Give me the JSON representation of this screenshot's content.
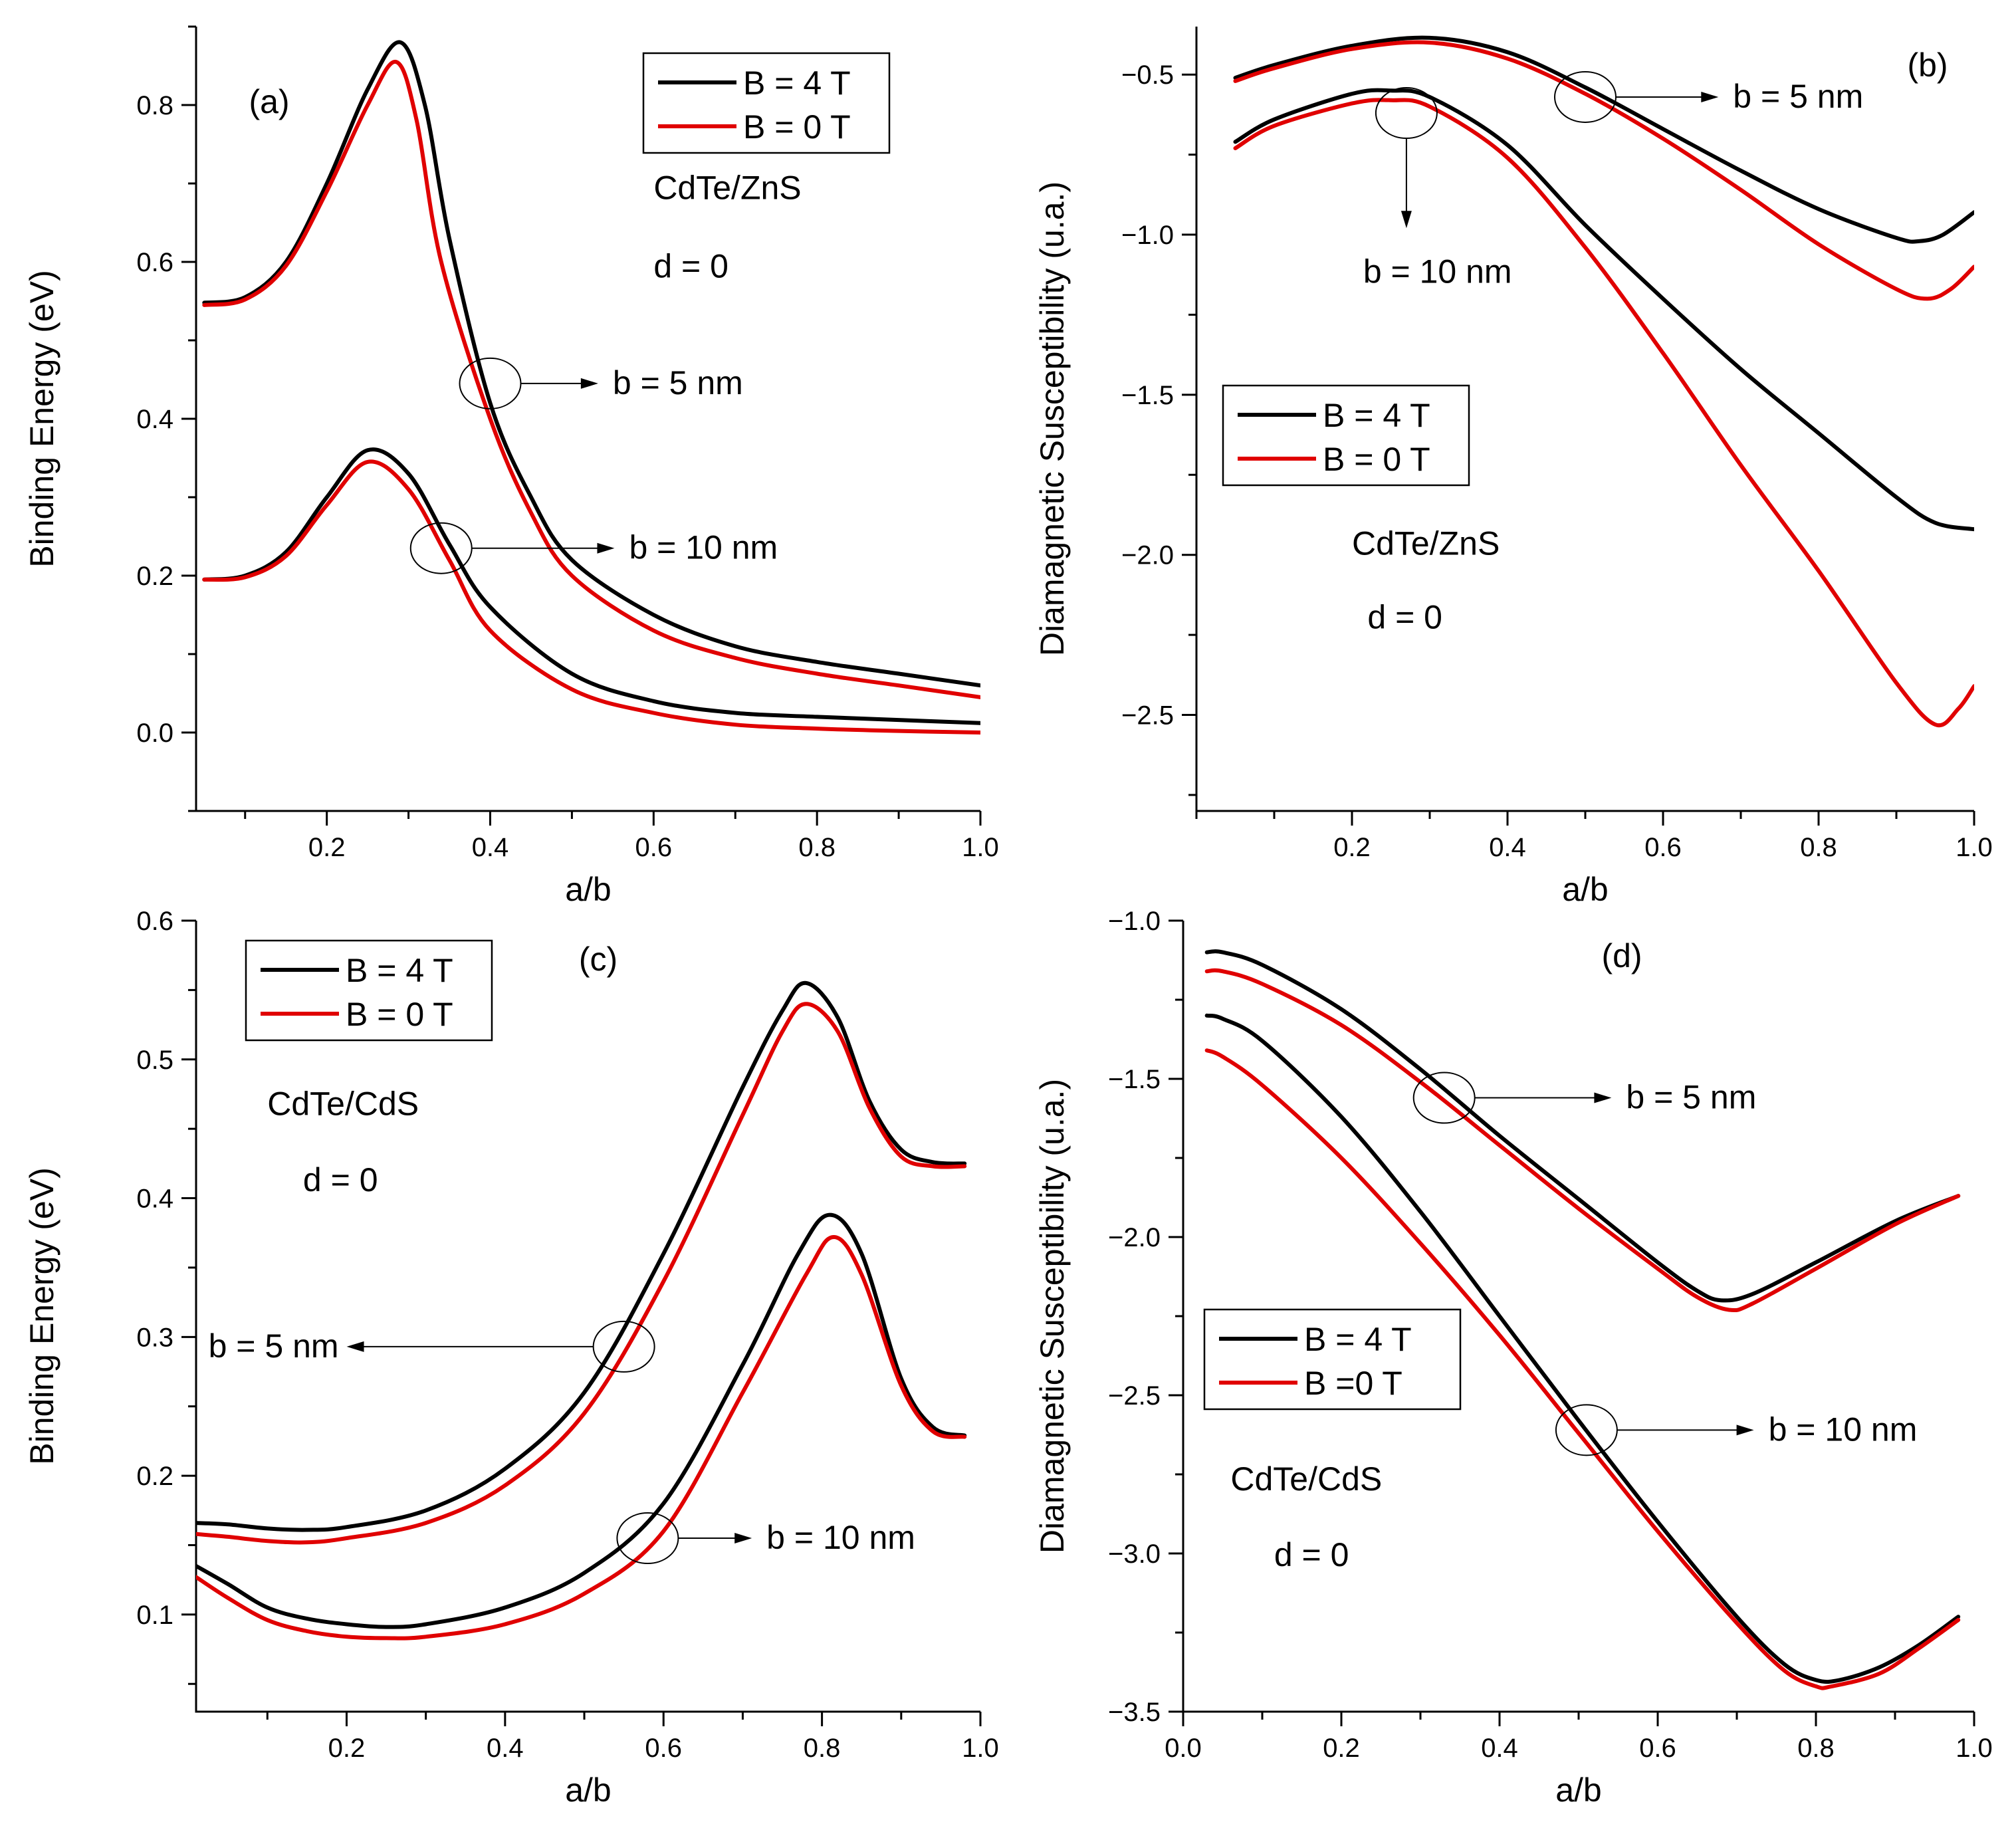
{
  "colors": {
    "b4": "#000000",
    "b0": "#e00000"
  },
  "chart_data": [
    {
      "id": "a",
      "type": "line",
      "panel_label": "(a)",
      "xlabel": "a/b",
      "ylabel": "Binding Energy (eV)",
      "xlim": [
        0.04,
        1.0
      ],
      "ylim": [
        -0.1,
        0.9
      ],
      "xticks": [
        0.2,
        0.4,
        0.6,
        0.8,
        1.0
      ],
      "xtick_labels": [
        "0.2",
        "0.4",
        "0.6",
        "0.8",
        "1.0"
      ],
      "yticks": [
        0.0,
        0.2,
        0.4,
        0.6,
        0.8
      ],
      "ytick_labels": [
        "0.0",
        "0.2",
        "0.4",
        "0.6",
        "0.8"
      ],
      "legend": {
        "position": "top-right",
        "entries": [
          {
            "label": "B = 4 T",
            "color_key": "b4"
          },
          {
            "label": "B = 0 T",
            "color_key": "b0"
          }
        ]
      },
      "annotations": [
        {
          "text": "CdTe/ZnS",
          "x": 0.6,
          "y": 0.68
        },
        {
          "text": "d = 0",
          "x": 0.6,
          "y": 0.58
        }
      ],
      "markers": [
        {
          "text": "b = 5 nm",
          "ex": 0.4,
          "ey": 0.445,
          "tx": 0.55,
          "ty": 0.445
        },
        {
          "text": "b = 10 nm",
          "ex": 0.34,
          "ey": 0.235,
          "tx": 0.57,
          "ty": 0.235
        }
      ],
      "series": [
        {
          "name": "B = 4 T, b = 5 nm",
          "color_key": "b4",
          "x": [
            0.05,
            0.1,
            0.15,
            0.2,
            0.25,
            0.29,
            0.32,
            0.35,
            0.4,
            0.45,
            0.5,
            0.6,
            0.7,
            0.8,
            0.9,
            1.0
          ],
          "y": [
            0.548,
            0.555,
            0.6,
            0.7,
            0.82,
            0.88,
            0.8,
            0.63,
            0.42,
            0.3,
            0.22,
            0.15,
            0.11,
            0.09,
            0.075,
            0.06
          ]
        },
        {
          "name": "B = 0 T, b = 5 nm",
          "color_key": "b0",
          "x": [
            0.05,
            0.1,
            0.15,
            0.2,
            0.25,
            0.285,
            0.31,
            0.34,
            0.4,
            0.45,
            0.5,
            0.6,
            0.7,
            0.8,
            0.9,
            1.0
          ],
          "y": [
            0.545,
            0.552,
            0.595,
            0.69,
            0.8,
            0.855,
            0.78,
            0.6,
            0.4,
            0.28,
            0.2,
            0.13,
            0.095,
            0.075,
            0.06,
            0.045
          ]
        },
        {
          "name": "B = 4 T, b = 10 nm",
          "color_key": "b4",
          "x": [
            0.05,
            0.1,
            0.15,
            0.2,
            0.25,
            0.3,
            0.35,
            0.4,
            0.5,
            0.6,
            0.7,
            0.8,
            0.9,
            1.0
          ],
          "y": [
            0.195,
            0.2,
            0.23,
            0.3,
            0.36,
            0.33,
            0.24,
            0.16,
            0.075,
            0.04,
            0.025,
            0.02,
            0.016,
            0.012
          ]
        },
        {
          "name": "B = 0 T, b = 10 nm",
          "color_key": "b0",
          "x": [
            0.05,
            0.1,
            0.15,
            0.2,
            0.25,
            0.3,
            0.35,
            0.4,
            0.5,
            0.6,
            0.7,
            0.8,
            0.9,
            1.0
          ],
          "y": [
            0.195,
            0.198,
            0.225,
            0.29,
            0.345,
            0.31,
            0.22,
            0.13,
            0.055,
            0.025,
            0.01,
            0.005,
            0.002,
            0.0
          ]
        }
      ]
    },
    {
      "id": "b",
      "type": "line",
      "panel_label": "(b)",
      "xlabel": "a/b",
      "ylabel": "Diamagnetic Susceptibility (u.a.)",
      "xlim": [
        0.0,
        1.0
      ],
      "ylim": [
        -2.8,
        -0.35
      ],
      "xticks": [
        0.2,
        0.4,
        0.6,
        0.8,
        1.0
      ],
      "xtick_labels": [
        "0.2",
        "0.4",
        "0.6",
        "0.8",
        "1.0"
      ],
      "yticks": [
        -2.5,
        -2.0,
        -1.5,
        -1.0,
        -0.5
      ],
      "ytick_labels": [
        "−2.5",
        "−2.0",
        "−1.5",
        "−1.0",
        "−0.5"
      ],
      "legend": {
        "position": "center-left",
        "entries": [
          {
            "label": "B = 4 T",
            "color_key": "b4"
          },
          {
            "label": "B = 0 T",
            "color_key": "b0"
          }
        ]
      },
      "annotations": [
        {
          "text": "CdTe/ZnS",
          "x": 0.2,
          "y": -2.0
        },
        {
          "text": "d = 0",
          "x": 0.22,
          "y": -2.23
        }
      ],
      "markers": [
        {
          "text": "b = 5 nm",
          "ex": 0.5,
          "ey": -0.57,
          "tx": 0.69,
          "ty": -0.57
        },
        {
          "text": "b = 10 nm",
          "ex": 0.27,
          "ey": -0.62,
          "tx": 0.31,
          "ty": -1.15,
          "arrow_dir": "down"
        }
      ],
      "series": [
        {
          "name": "B = 4 T, b = 5 nm",
          "color_key": "b4",
          "x": [
            0.05,
            0.1,
            0.2,
            0.3,
            0.4,
            0.5,
            0.6,
            0.7,
            0.8,
            0.9,
            0.93,
            0.96,
            1.0
          ],
          "y": [
            -0.51,
            -0.47,
            -0.41,
            -0.385,
            -0.43,
            -0.54,
            -0.67,
            -0.8,
            -0.92,
            -1.01,
            -1.02,
            -1.0,
            -0.93
          ]
        },
        {
          "name": "B = 0 T, b = 5 nm",
          "color_key": "b0",
          "x": [
            0.05,
            0.1,
            0.2,
            0.3,
            0.4,
            0.5,
            0.6,
            0.7,
            0.8,
            0.9,
            0.94,
            0.97,
            1.0
          ],
          "y": [
            -0.52,
            -0.48,
            -0.42,
            -0.4,
            -0.45,
            -0.56,
            -0.7,
            -0.86,
            -1.03,
            -1.17,
            -1.2,
            -1.17,
            -1.1
          ]
        },
        {
          "name": "B = 4 T, b = 10 nm",
          "color_key": "b4",
          "x": [
            0.05,
            0.1,
            0.2,
            0.25,
            0.3,
            0.4,
            0.5,
            0.6,
            0.7,
            0.8,
            0.9,
            0.95,
            1.0
          ],
          "y": [
            -0.71,
            -0.64,
            -0.56,
            -0.55,
            -0.57,
            -0.72,
            -0.97,
            -1.2,
            -1.42,
            -1.62,
            -1.82,
            -1.9,
            -1.92
          ]
        },
        {
          "name": "B = 0 T, b = 10 nm",
          "color_key": "b0",
          "x": [
            0.05,
            0.1,
            0.2,
            0.25,
            0.3,
            0.4,
            0.5,
            0.6,
            0.7,
            0.8,
            0.9,
            0.95,
            0.98,
            1.0
          ],
          "y": [
            -0.73,
            -0.66,
            -0.59,
            -0.58,
            -0.6,
            -0.76,
            -1.04,
            -1.37,
            -1.72,
            -2.05,
            -2.4,
            -2.53,
            -2.48,
            -2.41
          ]
        }
      ]
    },
    {
      "id": "c",
      "type": "line",
      "panel_label": "(c)",
      "xlabel": "a/b",
      "ylabel": "Binding Energy (eV)",
      "xlim": [
        0.01,
        1.0
      ],
      "ylim": [
        0.03,
        0.6
      ],
      "xticks": [
        0.2,
        0.4,
        0.6,
        0.8,
        1.0
      ],
      "xtick_labels": [
        "0.2",
        "0.4",
        "0.6",
        "0.8",
        "1.0"
      ],
      "yticks": [
        0.1,
        0.2,
        0.3,
        0.4,
        0.5,
        0.6
      ],
      "ytick_labels": [
        "0.1",
        "0.2",
        "0.3",
        "0.4",
        "0.5",
        "0.6"
      ],
      "legend": {
        "position": "top-left",
        "entries": [
          {
            "label": "B = 4 T",
            "color_key": "b4"
          },
          {
            "label": "B = 0 T",
            "color_key": "b0"
          }
        ]
      },
      "annotations": [
        {
          "text": "CdTe/CdS",
          "x": 0.1,
          "y": 0.46
        },
        {
          "text": "d = 0",
          "x": 0.145,
          "y": 0.405
        }
      ],
      "markers": [
        {
          "text": "b = 5 nm",
          "ex": 0.55,
          "ey": 0.293,
          "tx": 0.19,
          "ty": 0.293,
          "arrow_dir": "left"
        },
        {
          "text": "b = 10 nm",
          "ex": 0.58,
          "ey": 0.155,
          "tx": 0.73,
          "ty": 0.155
        }
      ],
      "series": [
        {
          "name": "B = 4 T, b = 5 nm",
          "color_key": "b4",
          "x": [
            0.01,
            0.05,
            0.1,
            0.15,
            0.2,
            0.3,
            0.4,
            0.5,
            0.6,
            0.7,
            0.75,
            0.78,
            0.82,
            0.86,
            0.9,
            0.94,
            0.98
          ],
          "y": [
            0.166,
            0.165,
            0.162,
            0.161,
            0.163,
            0.175,
            0.205,
            0.26,
            0.36,
            0.48,
            0.535,
            0.555,
            0.53,
            0.47,
            0.435,
            0.426,
            0.425
          ]
        },
        {
          "name": "B = 0 T, b = 5 nm",
          "color_key": "b0",
          "x": [
            0.01,
            0.05,
            0.1,
            0.15,
            0.2,
            0.3,
            0.4,
            0.5,
            0.6,
            0.7,
            0.75,
            0.78,
            0.82,
            0.86,
            0.9,
            0.94,
            0.98
          ],
          "y": [
            0.158,
            0.156,
            0.153,
            0.152,
            0.155,
            0.166,
            0.193,
            0.245,
            0.34,
            0.46,
            0.52,
            0.54,
            0.52,
            0.465,
            0.43,
            0.423,
            0.423
          ]
        },
        {
          "name": "B = 4 T, b = 10 nm",
          "color_key": "b4",
          "x": [
            0.01,
            0.05,
            0.1,
            0.15,
            0.2,
            0.25,
            0.3,
            0.4,
            0.5,
            0.6,
            0.7,
            0.77,
            0.81,
            0.85,
            0.9,
            0.94,
            0.98
          ],
          "y": [
            0.135,
            0.122,
            0.105,
            0.097,
            0.093,
            0.091,
            0.093,
            0.105,
            0.13,
            0.18,
            0.28,
            0.36,
            0.388,
            0.36,
            0.27,
            0.235,
            0.229
          ]
        },
        {
          "name": "B = 0 T, b = 10 nm",
          "color_key": "b0",
          "x": [
            0.01,
            0.05,
            0.1,
            0.15,
            0.2,
            0.25,
            0.3,
            0.4,
            0.5,
            0.6,
            0.7,
            0.78,
            0.815,
            0.85,
            0.9,
            0.94,
            0.98
          ],
          "y": [
            0.127,
            0.112,
            0.096,
            0.088,
            0.084,
            0.083,
            0.084,
            0.093,
            0.115,
            0.16,
            0.26,
            0.345,
            0.372,
            0.345,
            0.265,
            0.232,
            0.228
          ]
        }
      ]
    },
    {
      "id": "d",
      "type": "line",
      "panel_label": "(d)",
      "xlabel": "a/b",
      "ylabel": "Diamagnetic Susceptibility (u.a.)",
      "xlim": [
        0.0,
        1.0
      ],
      "ylim": [
        -3.5,
        -1.0
      ],
      "xticks": [
        0.0,
        0.2,
        0.4,
        0.6,
        0.8,
        1.0
      ],
      "xtick_labels": [
        "0.0",
        "0.2",
        "0.4",
        "0.6",
        "0.8",
        "1.0"
      ],
      "yticks": [
        -3.5,
        -3.0,
        -2.5,
        -2.0,
        -1.5,
        -1.0
      ],
      "ytick_labels": [
        "−3.5",
        "−3.0",
        "−2.5",
        "−2.0",
        "−1.5",
        "−1.0"
      ],
      "legend": {
        "position": "center-left",
        "entries": [
          {
            "label": "B = 4 T",
            "color_key": "b4"
          },
          {
            "label": "B  =0 T",
            "color_key": "b0"
          }
        ]
      },
      "annotations": [
        {
          "text": "CdTe/CdS",
          "x": 0.06,
          "y": -2.8
        },
        {
          "text": "d = 0",
          "x": 0.115,
          "y": -3.04
        }
      ],
      "markers": [
        {
          "text": "b = 5 nm",
          "ex": 0.33,
          "ey": -1.56,
          "tx": 0.56,
          "ty": -1.56
        },
        {
          "text": "b = 10 nm",
          "ex": 0.51,
          "ey": -2.61,
          "tx": 0.74,
          "ty": -2.61
        }
      ],
      "series": [
        {
          "name": "B = 4 T, b = 5 nm",
          "color_key": "b4",
          "x": [
            0.03,
            0.05,
            0.1,
            0.2,
            0.3,
            0.4,
            0.5,
            0.6,
            0.65,
            0.68,
            0.72,
            0.8,
            0.9,
            0.98
          ],
          "y": [
            -1.1,
            -1.1,
            -1.14,
            -1.28,
            -1.47,
            -1.68,
            -1.88,
            -2.08,
            -2.17,
            -2.2,
            -2.18,
            -2.08,
            -1.95,
            -1.87
          ]
        },
        {
          "name": "B = 0 T, b = 5 nm",
          "color_key": "b0",
          "x": [
            0.03,
            0.05,
            0.1,
            0.2,
            0.3,
            0.4,
            0.5,
            0.6,
            0.65,
            0.69,
            0.72,
            0.8,
            0.9,
            0.98
          ],
          "y": [
            -1.16,
            -1.16,
            -1.2,
            -1.33,
            -1.51,
            -1.71,
            -1.91,
            -2.1,
            -2.19,
            -2.23,
            -2.21,
            -2.1,
            -1.96,
            -1.87
          ]
        },
        {
          "name": "B = 4 T, b = 10 nm",
          "color_key": "b4",
          "x": [
            0.03,
            0.05,
            0.1,
            0.2,
            0.3,
            0.4,
            0.5,
            0.6,
            0.7,
            0.76,
            0.8,
            0.83,
            0.88,
            0.93,
            0.98
          ],
          "y": [
            -1.3,
            -1.31,
            -1.38,
            -1.62,
            -1.92,
            -2.25,
            -2.58,
            -2.9,
            -3.2,
            -3.35,
            -3.4,
            -3.4,
            -3.36,
            -3.29,
            -3.2
          ]
        },
        {
          "name": "B = 0 T, b = 10 nm",
          "color_key": "b0",
          "x": [
            0.03,
            0.05,
            0.1,
            0.2,
            0.3,
            0.4,
            0.5,
            0.6,
            0.7,
            0.76,
            0.8,
            0.82,
            0.88,
            0.93,
            0.98
          ],
          "y": [
            -1.41,
            -1.43,
            -1.52,
            -1.75,
            -2.02,
            -2.31,
            -2.62,
            -2.93,
            -3.22,
            -3.37,
            -3.42,
            -3.42,
            -3.38,
            -3.3,
            -3.21
          ]
        }
      ]
    }
  ]
}
